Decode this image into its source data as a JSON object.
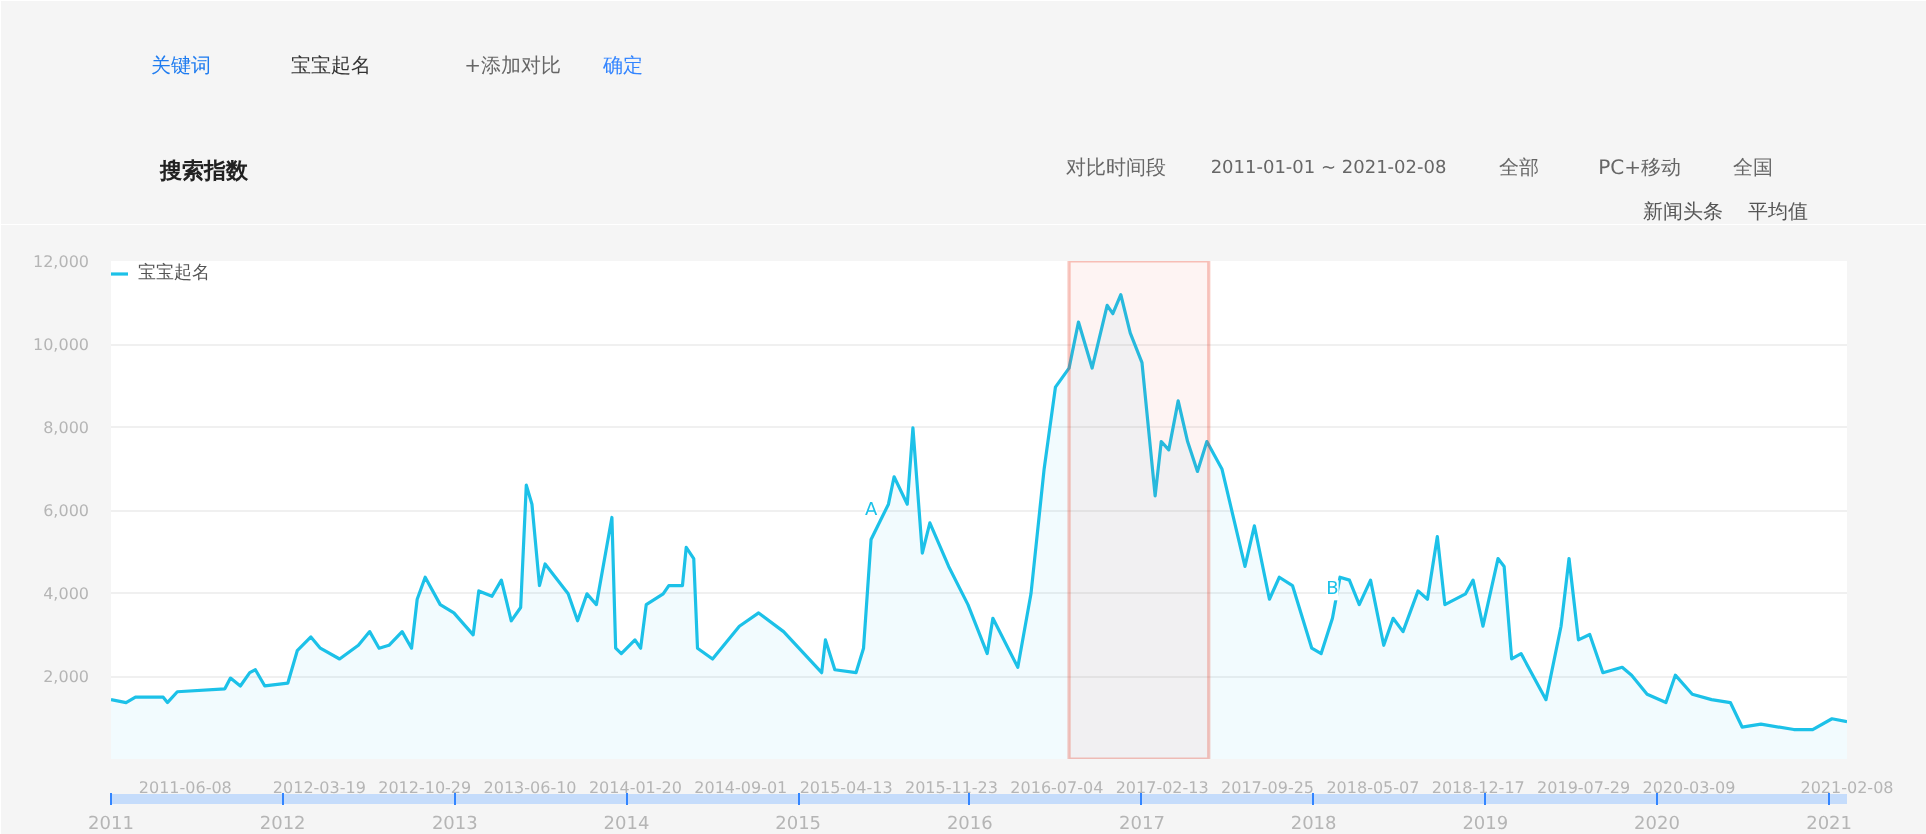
{
  "chart_data": {
    "type": "area",
    "title": "搜索指数",
    "subtitle": "2011-01-01 ~ 2021-02-08",
    "annotations": [
      "关键词",
      "宝宝起名",
      "+添加对比",
      "确定",
      "对比时间段",
      "全部",
      "PC+移动",
      "全国",
      "新闻头条",
      "平均值",
      {
        "text": "A",
        "x": "2015-06-05",
        "y": 5290
      },
      {
        "text": "B",
        "x": "2018-02-10",
        "y": 3390
      }
    ],
    "x": [
      "2011-01-01",
      "2011-02-02",
      "2011-02-22",
      "2011-04-22",
      "2011-05-01",
      "2011-05-22",
      "2011-08-31",
      "2011-09-12",
      "2011-10-03",
      "2011-10-23",
      "2011-11-04",
      "2011-11-24",
      "2012-01-12",
      "2012-02-01",
      "2012-03-01",
      "2012-03-21",
      "2012-05-01",
      "2012-06-10",
      "2012-07-04",
      "2012-07-24",
      "2012-08-14",
      "2012-09-11",
      "2012-10-01",
      "2012-10-13",
      "2012-10-30",
      "2012-12-01",
      "2012-12-30",
      "2013-02-09",
      "2013-02-21",
      "2013-03-21",
      "2013-04-10",
      "2013-05-01",
      "2013-05-21",
      "2013-06-02",
      "2013-06-14",
      "2013-06-30",
      "2013-07-12",
      "2013-08-30",
      "2013-09-19",
      "2013-10-09",
      "2013-10-29",
      "2013-12-01",
      "2013-12-09",
      "2013-12-21",
      "2014-01-19",
      "2014-01-31",
      "2014-02-12",
      "2014-03-20",
      "2014-04-01",
      "2014-04-30",
      "2014-05-08",
      "2014-05-24",
      "2014-06-01",
      "2014-07-03",
      "2014-08-29",
      "2014-10-09",
      "2014-12-01",
      "2015-02-20",
      "2015-02-28",
      "2015-03-20",
      "2015-05-04",
      "2015-05-20",
      "2015-06-05",
      "2015-07-12",
      "2015-07-24",
      "2015-08-21",
      "2015-09-02",
      "2015-09-22",
      "2015-10-08",
      "2015-11-17",
      "2015-12-28",
      "2016-02-07",
      "2016-02-19",
      "2016-04-12",
      "2016-05-10",
      "2016-06-07",
      "2016-07-01",
      "2016-07-30",
      "2016-08-19",
      "2016-09-17",
      "2016-10-19",
      "2016-10-31",
      "2016-11-17",
      "2016-12-07",
      "2017-01-01",
      "2017-01-29",
      "2017-02-11",
      "2017-02-27",
      "2017-03-19",
      "2017-04-08",
      "2017-04-29",
      "2017-05-19",
      "2017-06-20",
      "2017-08-08",
      "2017-08-28",
      "2017-09-29",
      "2017-10-20",
      "2017-11-17",
      "2017-12-28",
      "2018-01-17",
      "2018-02-10",
      "2018-02-26",
      "2018-03-18",
      "2018-04-08",
      "2018-05-02",
      "2018-05-30",
      "2018-06-19",
      "2018-07-10",
      "2018-08-11",
      "2018-08-31",
      "2018-09-21",
      "2018-10-07",
      "2018-11-20",
      "2018-12-06",
      "2018-12-27",
      "2019-01-28",
      "2019-02-10",
      "2019-02-26",
      "2019-03-18",
      "2019-05-10",
      "2019-06-11",
      "2019-06-28",
      "2019-07-18",
      "2019-08-11",
      "2019-09-08",
      "2019-10-19",
      "2019-11-08",
      "2019-12-11",
      "2020-01-20",
      "2020-02-09",
      "2020-03-16",
      "2020-04-26",
      "2020-06-05",
      "2020-06-30",
      "2020-08-09",
      "2020-10-18",
      "2020-11-27",
      "2021-01-07",
      "2021-02-08"
    ],
    "series": [
      {
        "name": "宝宝起名",
        "color": "#1cc1e8",
        "values": [
          1430,
          1360,
          1490,
          1490,
          1360,
          1620,
          1690,
          1950,
          1760,
          2080,
          2150,
          1760,
          1830,
          2610,
          2940,
          2670,
          2410,
          2740,
          3070,
          2670,
          2740,
          3070,
          2670,
          3850,
          4380,
          3720,
          3520,
          2990,
          4050,
          3920,
          4310,
          3330,
          3650,
          6600,
          6140,
          4180,
          4700,
          3980,
          3330,
          3980,
          3720,
          5820,
          2670,
          2540,
          2870,
          2670,
          3720,
          3980,
          4180,
          4180,
          5100,
          4830,
          2670,
          2410,
          3200,
          3520,
          3070,
          2080,
          2870,
          2150,
          2080,
          2670,
          5290,
          6140,
          6800,
          6140,
          7980,
          4960,
          5690,
          4640,
          3720,
          2540,
          3390,
          2210,
          3980,
          6990,
          8960,
          9420,
          10530,
          9420,
          10930,
          10730,
          11190,
          10270,
          9550,
          6340,
          7650,
          7450,
          8630,
          7650,
          6930,
          7650,
          6990,
          4640,
          5620,
          3850,
          4380,
          4180,
          2670,
          2540,
          3390,
          4380,
          4310,
          3720,
          4310,
          2740,
          3390,
          3070,
          4050,
          3850,
          5360,
          3720,
          3980,
          4310,
          3200,
          4830,
          4640,
          2410,
          2540,
          1430,
          3200,
          4830,
          2870,
          3000,
          2080,
          2210,
          2020,
          1560,
          1360,
          2020,
          1560,
          1430,
          1360,
          770,
          840,
          710,
          710,
          970,
          900
        ]
      }
    ],
    "xlim": [
      "2011-01-01",
      "2021-02-08"
    ],
    "xticks": [
      {
        "value": "2011-06-08",
        "label": "2011-06-08"
      },
      {
        "value": "2012-03-19",
        "label": "2012-03-19"
      },
      {
        "value": "2012-10-29",
        "label": "2012-10-29"
      },
      {
        "value": "2013-06-10",
        "label": "2013-06-10"
      },
      {
        "value": "2014-01-20",
        "label": "2014-01-20"
      },
      {
        "value": "2014-09-01",
        "label": "2014-09-01"
      },
      {
        "value": "2015-04-13",
        "label": "2015-04-13"
      },
      {
        "value": "2015-11-23",
        "label": "2015-11-23"
      },
      {
        "value": "2016-07-04",
        "label": "2016-07-04"
      },
      {
        "value": "2017-02-13",
        "label": "2017-02-13"
      },
      {
        "value": "2017-09-25",
        "label": "2017-09-25"
      },
      {
        "value": "2018-05-07",
        "label": "2018-05-07"
      },
      {
        "value": "2018-12-17",
        "label": "2018-12-17"
      },
      {
        "value": "2019-07-29",
        "label": "2019-07-29"
      },
      {
        "value": "2020-03-09",
        "label": "2020-03-09"
      },
      {
        "value": "2021-02-08",
        "label": "2021-02-08"
      }
    ],
    "x2lim": [
      "2011-01-01",
      "2021-02-08"
    ],
    "x2ticks": [
      {
        "value": "2011-01-01",
        "label": "2011"
      },
      {
        "value": "2012-01-01",
        "label": "2012"
      },
      {
        "value": "2013-01-01",
        "label": "2013"
      },
      {
        "value": "2014-01-01",
        "label": "2014"
      },
      {
        "value": "2015-01-01",
        "label": "2015"
      },
      {
        "value": "2016-01-01",
        "label": "2016"
      },
      {
        "value": "2017-01-01",
        "label": "2017"
      },
      {
        "value": "2018-01-01",
        "label": "2018"
      },
      {
        "value": "2019-01-01",
        "label": "2019"
      },
      {
        "value": "2020-01-01",
        "label": "2020"
      },
      {
        "value": "2021-01-01",
        "label": "2021"
      }
    ],
    "ylim": [
      0,
      12000
    ],
    "yticks": [
      {
        "value": 2000,
        "label": "2,000"
      },
      {
        "value": 4000,
        "label": "4,000"
      },
      {
        "value": 6000,
        "label": "6,000"
      },
      {
        "value": 8000,
        "label": "8,000"
      },
      {
        "value": 10000,
        "label": "10,000"
      },
      {
        "value": 12000,
        "label": "12,000"
      }
    ],
    "bands": [
      {
        "axis": "x",
        "from": "2016-07-30",
        "to": "2017-05-23",
        "label": null,
        "color": "#e8412c"
      }
    ],
    "grid": "y",
    "legend": "top left",
    "line_style": "solid",
    "marker": "none"
  }
}
